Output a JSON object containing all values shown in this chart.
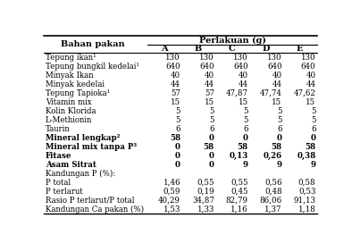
{
  "title": "Perlakuan (g)",
  "col_header": [
    "Bahan pakan",
    "A",
    "B",
    "C",
    "D",
    "E"
  ],
  "rows": [
    [
      "Tepung ikan¹",
      "130",
      "130",
      "130",
      "130",
      "130"
    ],
    [
      "Tepung bungkil kedelai¹",
      "640",
      "640",
      "640",
      "640",
      "640"
    ],
    [
      "Minyak Ikan",
      "40",
      "40",
      "40",
      "40",
      "40"
    ],
    [
      "Minyak kedelai",
      "44",
      "44",
      "44",
      "44",
      "44"
    ],
    [
      "Tepung Tapioka¹",
      "57",
      "57",
      "47,87",
      "47,74",
      "47,62"
    ],
    [
      "Vitamin mix",
      "15",
      "15",
      "15",
      "15",
      "15"
    ],
    [
      "Kolin Klorida",
      "5",
      "5",
      "5",
      "5",
      "5"
    ],
    [
      "L-Methionin",
      "5",
      "5",
      "5",
      "5",
      "5"
    ],
    [
      "Taurin",
      "6",
      "6",
      "6",
      "6",
      "6"
    ],
    [
      "Mineral lengkap²",
      "58",
      "0",
      "0",
      "0",
      "0"
    ],
    [
      "Mineral mix tanpa P³",
      "0",
      "58",
      "58",
      "58",
      "58"
    ],
    [
      "Fitase",
      "0",
      "0",
      "0,13",
      "0,26",
      "0,38"
    ],
    [
      "Asam Sitrat",
      "0",
      "0",
      "9",
      "9",
      "9"
    ],
    [
      "Kandungan P (%):",
      "",
      "",
      "",
      "",
      ""
    ],
    [
      "P total",
      "1,46",
      "0,55",
      "0,55",
      "0,56",
      "0,58"
    ],
    [
      "P terlarut",
      "0,59",
      "0,19",
      "0,45",
      "0,48",
      "0,53"
    ],
    [
      "Rasio P terlarut/P total",
      "40,29",
      "34,87",
      "82,79",
      "86,06",
      "91,13"
    ],
    [
      "Kandungan Ca pakan (%)",
      "1,53",
      "1,33",
      "1,16",
      "1,37",
      "1,18"
    ]
  ],
  "bold_rows": [
    9,
    10,
    11,
    12
  ],
  "bg_color": "#ffffff",
  "figsize": [
    3.94,
    2.82
  ],
  "dpi": 100
}
